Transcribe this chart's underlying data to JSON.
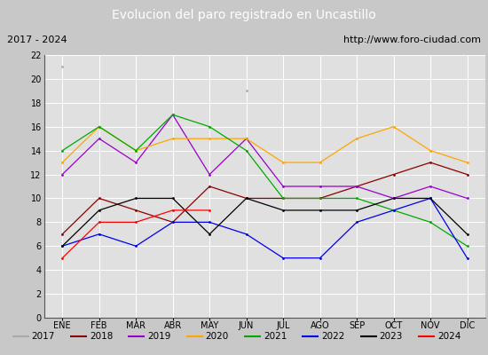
{
  "title": "Evolucion del paro registrado en Uncastillo",
  "subtitle_left": "2017 - 2024",
  "subtitle_right": "http://www.foro-ciudad.com",
  "ylim": [
    0,
    22
  ],
  "yticks": [
    0,
    2,
    4,
    6,
    8,
    10,
    12,
    14,
    16,
    18,
    20,
    22
  ],
  "months": [
    "ENE",
    "FEB",
    "MAR",
    "ABR",
    "MAY",
    "JUN",
    "JUL",
    "AGO",
    "SEP",
    "OCT",
    "NOV",
    "DIC"
  ],
  "series": {
    "2017": {
      "color": "#aaaaaa",
      "values": [
        21,
        null,
        null,
        null,
        null,
        19,
        null,
        null,
        null,
        null,
        null,
        null
      ]
    },
    "2018": {
      "color": "#8b0000",
      "values": [
        7,
        10,
        9,
        8,
        11,
        10,
        10,
        10,
        11,
        12,
        13,
        12
      ]
    },
    "2019": {
      "color": "#9900cc",
      "values": [
        12,
        15,
        13,
        17,
        12,
        15,
        11,
        11,
        11,
        10,
        11,
        10
      ]
    },
    "2020": {
      "color": "#ffa500",
      "values": [
        13,
        16,
        14,
        15,
        15,
        15,
        13,
        13,
        15,
        16,
        14,
        13
      ]
    },
    "2021": {
      "color": "#00aa00",
      "values": [
        14,
        16,
        14,
        17,
        16,
        14,
        10,
        10,
        10,
        9,
        8,
        6
      ]
    },
    "2022": {
      "color": "#0000ee",
      "values": [
        6,
        7,
        6,
        8,
        8,
        7,
        5,
        5,
        8,
        9,
        10,
        5
      ]
    },
    "2023": {
      "color": "#000000",
      "values": [
        6,
        9,
        10,
        10,
        7,
        10,
        9,
        9,
        9,
        10,
        10,
        7
      ]
    },
    "2024": {
      "color": "#ff0000",
      "values": [
        5,
        8,
        8,
        9,
        9,
        null,
        null,
        null,
        null,
        null,
        null,
        null
      ]
    }
  },
  "fig_bg_color": "#c8c8c8",
  "plot_bg_color": "#e0e0e0",
  "title_bg_color": "#4472c4",
  "title_fg_color": "#ffffff",
  "subtitle_bg_color": "#f0f0f0",
  "legend_bg_color": "#f0f0f0",
  "grid_color": "#ffffff",
  "border_color": "#888888"
}
